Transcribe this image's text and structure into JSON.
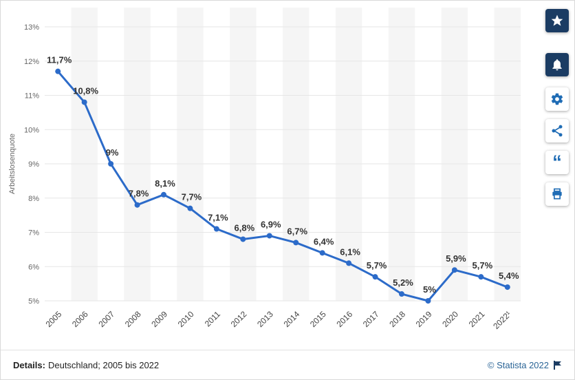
{
  "chart_data": {
    "type": "line",
    "title": "",
    "xlabel": "",
    "ylabel": "Arbeitslosenquote",
    "categories": [
      "2005",
      "2006",
      "2007",
      "2008",
      "2009",
      "2010",
      "2011",
      "2012",
      "2013",
      "2014",
      "2015",
      "2016",
      "2017",
      "2018",
      "2019",
      "2020",
      "2021",
      "2022¹"
    ],
    "values": [
      11.7,
      10.8,
      9,
      7.8,
      8.1,
      7.7,
      7.1,
      6.8,
      6.9,
      6.7,
      6.4,
      6.1,
      5.7,
      5.2,
      5,
      5.9,
      5.7,
      5.4
    ],
    "labels": [
      "11,7%",
      "10,8%",
      "9%",
      "7,8%",
      "8,1%",
      "7,7%",
      "7,1%",
      "6,8%",
      "6,9%",
      "6,7%",
      "6,4%",
      "6,1%",
      "5,7%",
      "5,2%",
      "5%",
      "5,9%",
      "5,7%",
      "5,4%"
    ],
    "ylim": [
      5,
      13
    ],
    "yticks": [
      "5%",
      "6%",
      "7%",
      "8%",
      "9%",
      "10%",
      "11%",
      "12%",
      "13%"
    ],
    "grid": true,
    "legend": "none",
    "line_color": "#2c6bc9",
    "band_color": "#f5f5f5",
    "grid_color": "#e6e6e6",
    "label_color": "#333333",
    "axis_text_color": "#666666"
  },
  "toolbar": {
    "icons": [
      {
        "name": "star-icon",
        "filled": true
      },
      {
        "name": "bell-icon",
        "filled": true
      },
      {
        "name": "gear-icon",
        "filled": false
      },
      {
        "name": "share-icon",
        "filled": false
      },
      {
        "name": "quote-icon",
        "filled": false
      },
      {
        "name": "print-icon",
        "filled": false
      }
    ],
    "icon_blue": "#1f6cb5",
    "filled_bg": "#1b3c63"
  },
  "footer": {
    "details_label": "Details:",
    "details_text": "Deutschland; 2005 bis 2022",
    "credit": "© Statista 2022",
    "credit_color": "#2a6496",
    "flag_color": "#1b3c63"
  }
}
